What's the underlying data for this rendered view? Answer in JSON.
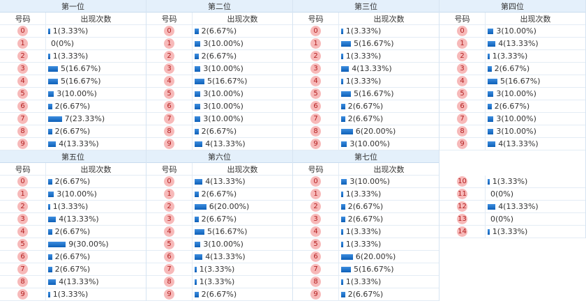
{
  "panels": [
    {
      "title": "第一位",
      "headers": [
        "号码",
        "出现次数"
      ],
      "rows": [
        [
          "0",
          1,
          "1(3.33%)"
        ],
        [
          "1",
          0,
          "0(0%)"
        ],
        [
          "2",
          1,
          "1(3.33%)"
        ],
        [
          "3",
          5,
          "5(16.67%)"
        ],
        [
          "4",
          5,
          "5(16.67%)"
        ],
        [
          "5",
          3,
          "3(10.00%)"
        ],
        [
          "6",
          2,
          "2(6.67%)"
        ],
        [
          "7",
          7,
          "7(23.33%)"
        ],
        [
          "8",
          2,
          "2(6.67%)"
        ],
        [
          "9",
          4,
          "4(13.33%)"
        ]
      ]
    },
    {
      "title": "第二位",
      "headers": [
        "号码",
        "出现次数"
      ],
      "rows": [
        [
          "0",
          2,
          "2(6.67%)"
        ],
        [
          "1",
          3,
          "3(10.00%)"
        ],
        [
          "2",
          2,
          "2(6.67%)"
        ],
        [
          "3",
          3,
          "3(10.00%)"
        ],
        [
          "4",
          5,
          "5(16.67%)"
        ],
        [
          "5",
          3,
          "3(10.00%)"
        ],
        [
          "6",
          3,
          "3(10.00%)"
        ],
        [
          "7",
          3,
          "3(10.00%)"
        ],
        [
          "8",
          2,
          "2(6.67%)"
        ],
        [
          "9",
          4,
          "4(13.33%)"
        ]
      ]
    },
    {
      "title": "第三位",
      "headers": [
        "号码",
        "出现次数"
      ],
      "rows": [
        [
          "0",
          1,
          "1(3.33%)"
        ],
        [
          "1",
          5,
          "5(16.67%)"
        ],
        [
          "2",
          1,
          "1(3.33%)"
        ],
        [
          "3",
          4,
          "4(13.33%)"
        ],
        [
          "4",
          1,
          "1(3.33%)"
        ],
        [
          "5",
          5,
          "5(16.67%)"
        ],
        [
          "6",
          2,
          "2(6.67%)"
        ],
        [
          "7",
          2,
          "2(6.67%)"
        ],
        [
          "8",
          6,
          "6(20.00%)"
        ],
        [
          "9",
          3,
          "3(10.00%)"
        ]
      ]
    },
    {
      "title": "第四位",
      "headers": [
        "号码",
        "出现次数"
      ],
      "rows": [
        [
          "0",
          3,
          "3(10.00%)"
        ],
        [
          "1",
          4,
          "4(13.33%)"
        ],
        [
          "2",
          1,
          "1(3.33%)"
        ],
        [
          "3",
          2,
          "2(6.67%)"
        ],
        [
          "4",
          5,
          "5(16.67%)"
        ],
        [
          "5",
          3,
          "3(10.00%)"
        ],
        [
          "6",
          2,
          "2(6.67%)"
        ],
        [
          "7",
          3,
          "3(10.00%)"
        ],
        [
          "8",
          3,
          "3(10.00%)"
        ],
        [
          "9",
          4,
          "4(13.33%)"
        ]
      ]
    },
    {
      "title": "第五位",
      "headers": [
        "号码",
        "出现次数"
      ],
      "rows": [
        [
          "0",
          2,
          "2(6.67%)"
        ],
        [
          "1",
          3,
          "3(10.00%)"
        ],
        [
          "2",
          1,
          "1(3.33%)"
        ],
        [
          "3",
          4,
          "4(13.33%)"
        ],
        [
          "4",
          2,
          "2(6.67%)"
        ],
        [
          "5",
          9,
          "9(30.00%)"
        ],
        [
          "6",
          2,
          "2(6.67%)"
        ],
        [
          "7",
          2,
          "2(6.67%)"
        ],
        [
          "8",
          4,
          "4(13.33%)"
        ],
        [
          "9",
          1,
          "1(3.33%)"
        ]
      ]
    },
    {
      "title": "第六位",
      "headers": [
        "号码",
        "出现次数"
      ],
      "rows": [
        [
          "0",
          4,
          "4(13.33%)"
        ],
        [
          "1",
          2,
          "2(6.67%)"
        ],
        [
          "2",
          6,
          "6(20.00%)"
        ],
        [
          "3",
          2,
          "2(6.67%)"
        ],
        [
          "4",
          5,
          "5(16.67%)"
        ],
        [
          "5",
          3,
          "3(10.00%)"
        ],
        [
          "6",
          4,
          "4(13.33%)"
        ],
        [
          "7",
          1,
          "1(3.33%)"
        ],
        [
          "8",
          1,
          "1(3.33%)"
        ],
        [
          "9",
          2,
          "2(6.67%)"
        ]
      ]
    },
    {
      "title": "第七位",
      "headers": [
        "号码",
        "出现次数"
      ],
      "rows": [
        [
          "0",
          3,
          "3(10.00%)"
        ],
        [
          "1",
          1,
          "1(3.33%)"
        ],
        [
          "2",
          2,
          "2(6.67%)"
        ],
        [
          "3",
          2,
          "2(6.67%)"
        ],
        [
          "4",
          1,
          "1(3.33%)"
        ],
        [
          "5",
          1,
          "1(3.33%)"
        ],
        [
          "6",
          6,
          "6(20.00%)"
        ],
        [
          "7",
          5,
          "5(16.67%)"
        ],
        [
          "8",
          1,
          "1(3.33%)"
        ],
        [
          "9",
          2,
          "2(6.67%)"
        ]
      ]
    },
    {
      "rows": [
        [
          "10",
          1,
          "1(3.33%)"
        ],
        [
          "11",
          0,
          "0(0%)"
        ],
        [
          "12",
          4,
          "4(13.33%)"
        ],
        [
          "13",
          0,
          "0(0%)"
        ],
        [
          "14",
          1,
          "1(3.33%)"
        ]
      ]
    }
  ]
}
